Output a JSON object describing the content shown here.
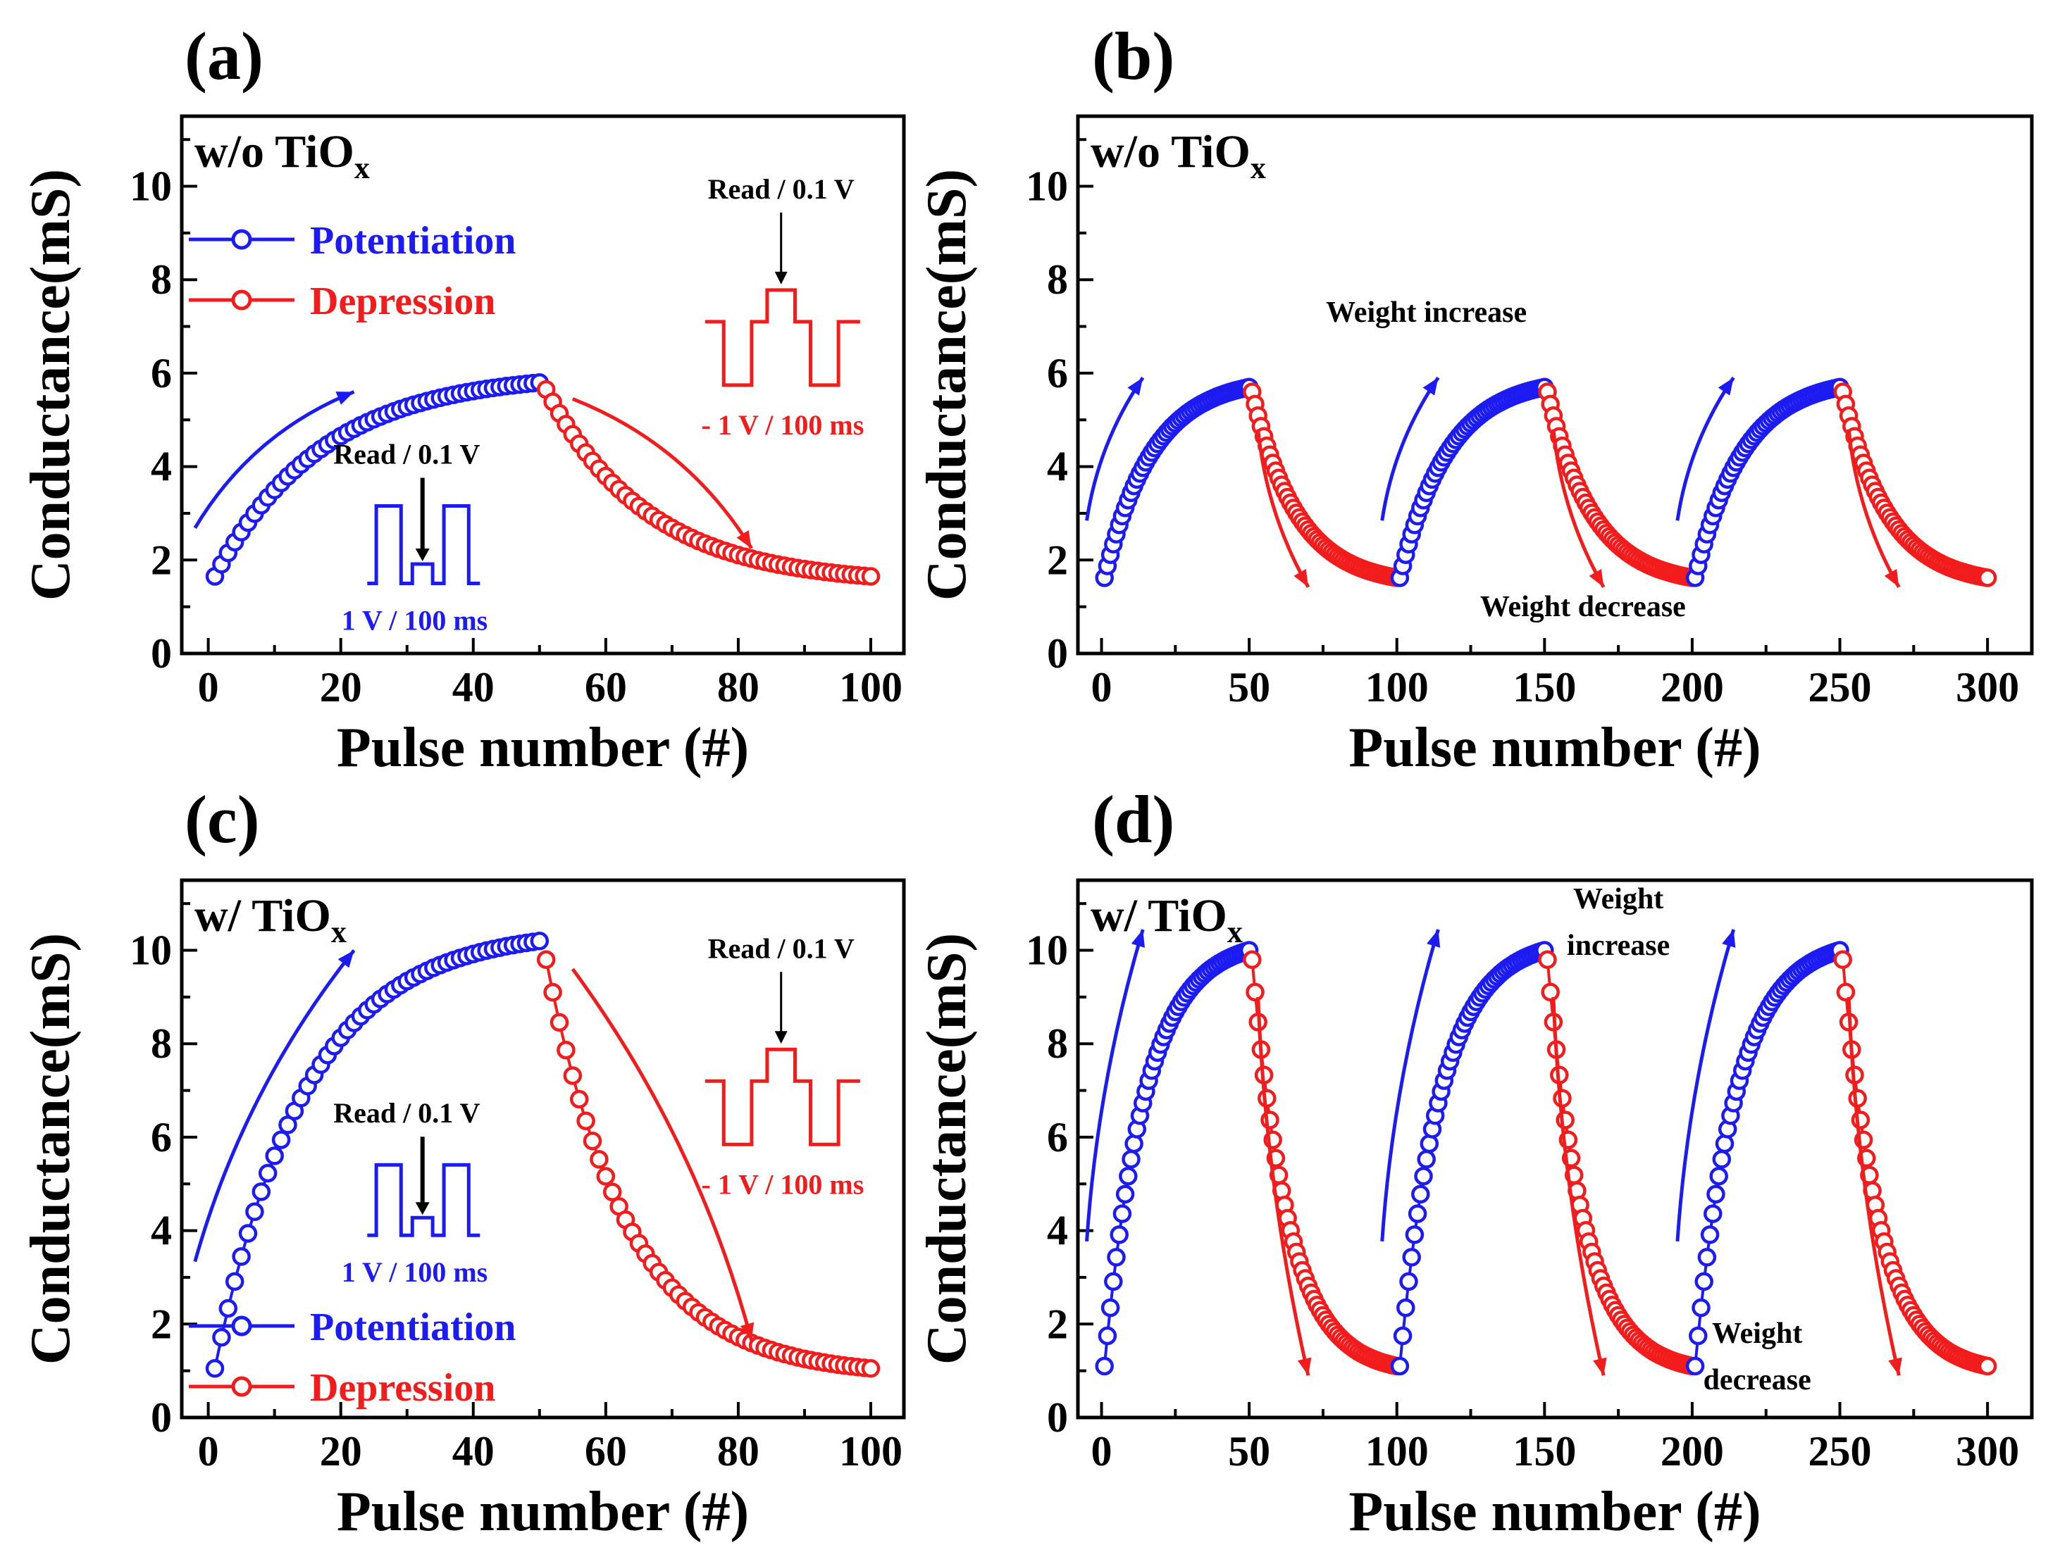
{
  "colors": {
    "potentiation": "#1c1cf2",
    "depression": "#f21c1c",
    "axis": "#000000"
  },
  "chart_data": [
    {
      "type": "scatter",
      "panel": "(a)",
      "sample": "w/o TiO",
      "sample_sub": "x",
      "xlabel": "Pulse number (#)",
      "ylabel": "Conductance(mS)",
      "xlim": [
        -4,
        105
      ],
      "ylim": [
        0,
        11.5
      ],
      "xticks": [
        0,
        20,
        40,
        60,
        80,
        100
      ],
      "yticks": [
        0,
        2,
        4,
        6,
        8,
        10
      ],
      "cycles": 1,
      "pulses_per_phase": 50,
      "levels": {
        "g_min": 1.65,
        "g_max": 5.8,
        "g_pot_end": 5.8,
        "g_dep_start": 5.65,
        "k_pot": 3.0,
        "k_dep": 3.2
      },
      "legend": {
        "show": true,
        "position": "top-left",
        "entries": [
          "Potentiation",
          "Depression"
        ]
      },
      "inset_potentiation": {
        "read_label": "Read / 0.1 V",
        "pulse_label": "1 V / 100 ms"
      },
      "inset_depression": {
        "read_label": "Read / 0.1 V",
        "pulse_label": "- 1 V / 100 ms"
      },
      "annotations": []
    },
    {
      "type": "scatter",
      "panel": "(b)",
      "sample": "w/o TiO",
      "sample_sub": "x",
      "xlabel": "Pulse number (#)",
      "ylabel": "Conductance(mS)",
      "xlim": [
        -8,
        315
      ],
      "ylim": [
        0,
        11.5
      ],
      "xticks": [
        0,
        50,
        100,
        150,
        200,
        250,
        300
      ],
      "yticks": [
        0,
        2,
        4,
        6,
        8,
        10
      ],
      "cycles": 3,
      "pulses_per_phase": 50,
      "levels": {
        "g_min": 1.62,
        "g_max": 5.7,
        "g_pot_end": 5.7,
        "g_dep_start": 5.6,
        "k_pot": 3.0,
        "k_dep": 3.2
      },
      "legend": {
        "show": false
      },
      "annotations": [
        {
          "text": "Weight increase",
          "x": 110,
          "y": 7.1,
          "anchor": "middle",
          "size": "small"
        },
        {
          "text": "Weight decrease",
          "x": 163,
          "y": 0.8,
          "anchor": "middle",
          "size": "small"
        }
      ]
    },
    {
      "type": "scatter",
      "panel": "(c)",
      "sample": "w/ TiO",
      "sample_sub": "x",
      "xlabel": "Pulse number (#)",
      "ylabel": "Conductance(mS)",
      "xlim": [
        -4,
        105
      ],
      "ylim": [
        0,
        11.5
      ],
      "xticks": [
        0,
        20,
        40,
        60,
        80,
        100
      ],
      "yticks": [
        0,
        2,
        4,
        6,
        8,
        10
      ],
      "cycles": 1,
      "pulses_per_phase": 50,
      "levels": {
        "g_min": 1.05,
        "g_max": 10.2,
        "g_pot_end": 10.2,
        "g_dep_start": 9.8,
        "k_pot": 3.6,
        "k_dep": 4.0
      },
      "legend": {
        "show": true,
        "position": "bottom-left",
        "entries": [
          "Potentiation",
          "Depression"
        ]
      },
      "inset_potentiation": {
        "read_label": "Read / 0.1 V",
        "pulse_label": "1 V / 100 ms"
      },
      "inset_depression": {
        "read_label": "Read / 0.1 V",
        "pulse_label": "- 1 V / 100 ms"
      },
      "annotations": []
    },
    {
      "type": "scatter",
      "panel": "(d)",
      "sample": "w/ TiO",
      "sample_sub": "x",
      "xlabel": "Pulse number (#)",
      "ylabel": "Conductance(mS)",
      "xlim": [
        -8,
        315
      ],
      "ylim": [
        0,
        11.5
      ],
      "xticks": [
        0,
        50,
        100,
        150,
        200,
        250,
        300
      ],
      "yticks": [
        0,
        2,
        4,
        6,
        8,
        10
      ],
      "cycles": 3,
      "pulses_per_phase": 50,
      "levels": {
        "g_min": 1.1,
        "g_max": 10.0,
        "g_pot_end": 10.0,
        "g_dep_start": 9.8,
        "k_pot": 3.6,
        "k_dep": 4.0
      },
      "legend": {
        "show": false
      },
      "annotations": [
        {
          "text": "Weight",
          "x": 175,
          "y": 10.9,
          "anchor": "middle",
          "size": "small"
        },
        {
          "text": "increase",
          "x": 175,
          "y": 9.9,
          "anchor": "middle",
          "size": "small"
        },
        {
          "text": "Weight",
          "x": 222,
          "y": 1.6,
          "anchor": "middle",
          "size": "small"
        },
        {
          "text": "decrease",
          "x": 222,
          "y": 0.6,
          "anchor": "middle",
          "size": "small"
        }
      ]
    }
  ]
}
